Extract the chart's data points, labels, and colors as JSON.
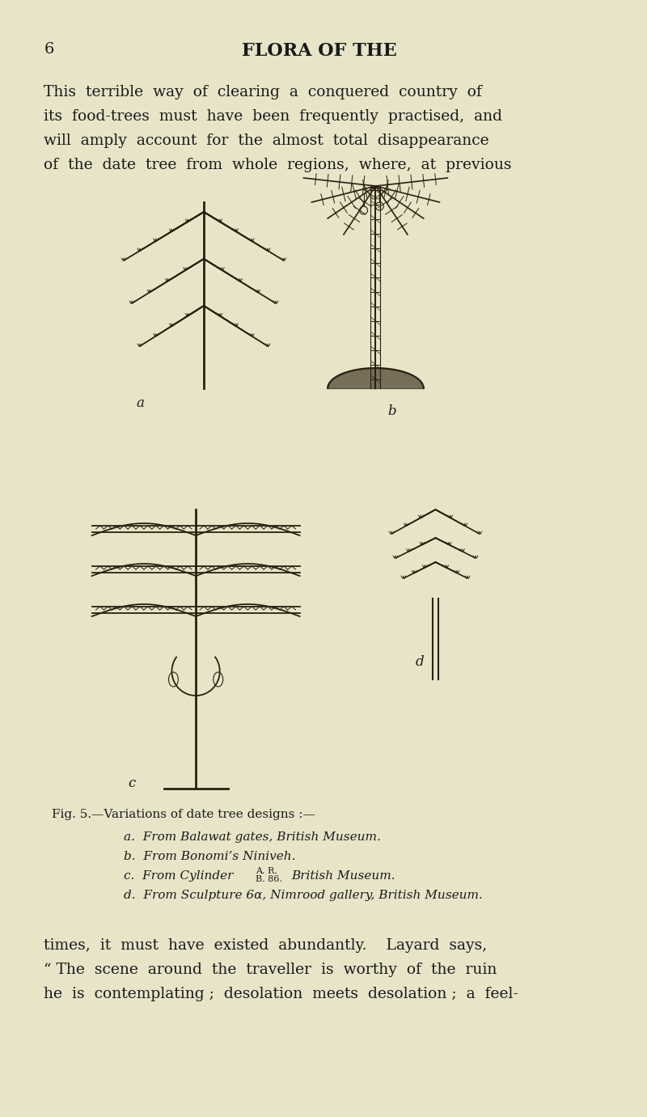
{
  "bg_color": "#e8e4c8",
  "text_color": "#1a1a1a",
  "page_number": "6",
  "header_title": "FLORA OF THE",
  "para1": "This  terrible  way  of  clearing  a  conquered  country  of\nits  food-trees  must  have  been  frequently  practised,  and\nwill  amply  account  for  the  almost  total  disappearance\nof  the  date  tree  from  whole  regions,  where,  at  previous",
  "para2": "times,  it  must  have  existed  abundantly.    Layard  says,\n“ The  scene  around  the  traveller  is  worthy  of  the  ruin\nhe  is  contemplating ;  desolation  meets  desolation ;  a  feel-",
  "caption_line1": "Fig. 5.—Variations of date tree designs :—",
  "caption_line2": "a.  From Balawat gates, British Museum.",
  "caption_line3": "b.  From Bonomi’s Niniveh.",
  "caption_line4_pre": "c.  From Cylinder",
  "caption_line4_super": "A. R.",
  "caption_line4_sub": "B. 86.",
  "caption_line4_post": "  British Museum.",
  "caption_line5": "d.  From Sculpture 6α, Nimrood gallery, British Museum.",
  "label_a": "a",
  "label_b": "b",
  "label_c": "c",
  "label_d": "d"
}
